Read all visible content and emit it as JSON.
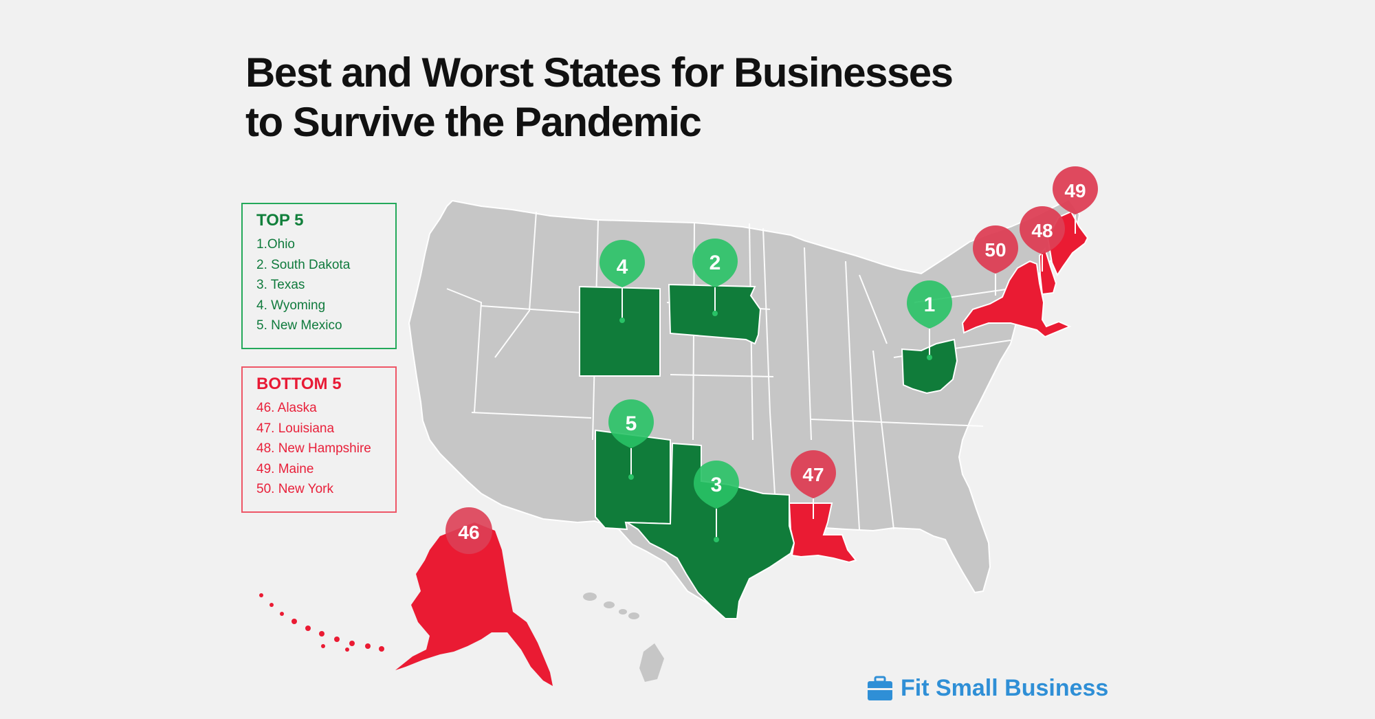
{
  "title": {
    "line1": "Best and Worst States for Businesses",
    "line2": "to Survive the Pandemic"
  },
  "legend_top": {
    "heading": "TOP 5",
    "items": [
      "1.Ohio",
      "2. South Dakota",
      "3. Texas",
      "4. Wyoming",
      "5. New Mexico"
    ]
  },
  "legend_bottom": {
    "heading": "BOTTOM 5",
    "items": [
      "46. Alaska",
      "47. Louisiana",
      "48. New Hampshire",
      "49. Maine",
      "50. New York"
    ]
  },
  "pins": {
    "ohio": "1",
    "south_dakota": "2",
    "texas": "3",
    "wyoming": "4",
    "new_mexico": "5",
    "alaska": "46",
    "louisiana": "47",
    "new_hampshire": "48",
    "maine": "49",
    "new_york": "50"
  },
  "brand": {
    "name": "Fit Small Business"
  },
  "colors": {
    "top": "#107c3a",
    "top_pin": "#29c266",
    "bottom": "#ea1b33",
    "bottom_pin": "#dd3f55",
    "neutral": "#c6c6c6",
    "border": "#ffffff",
    "brand": "#2f8fd6"
  }
}
